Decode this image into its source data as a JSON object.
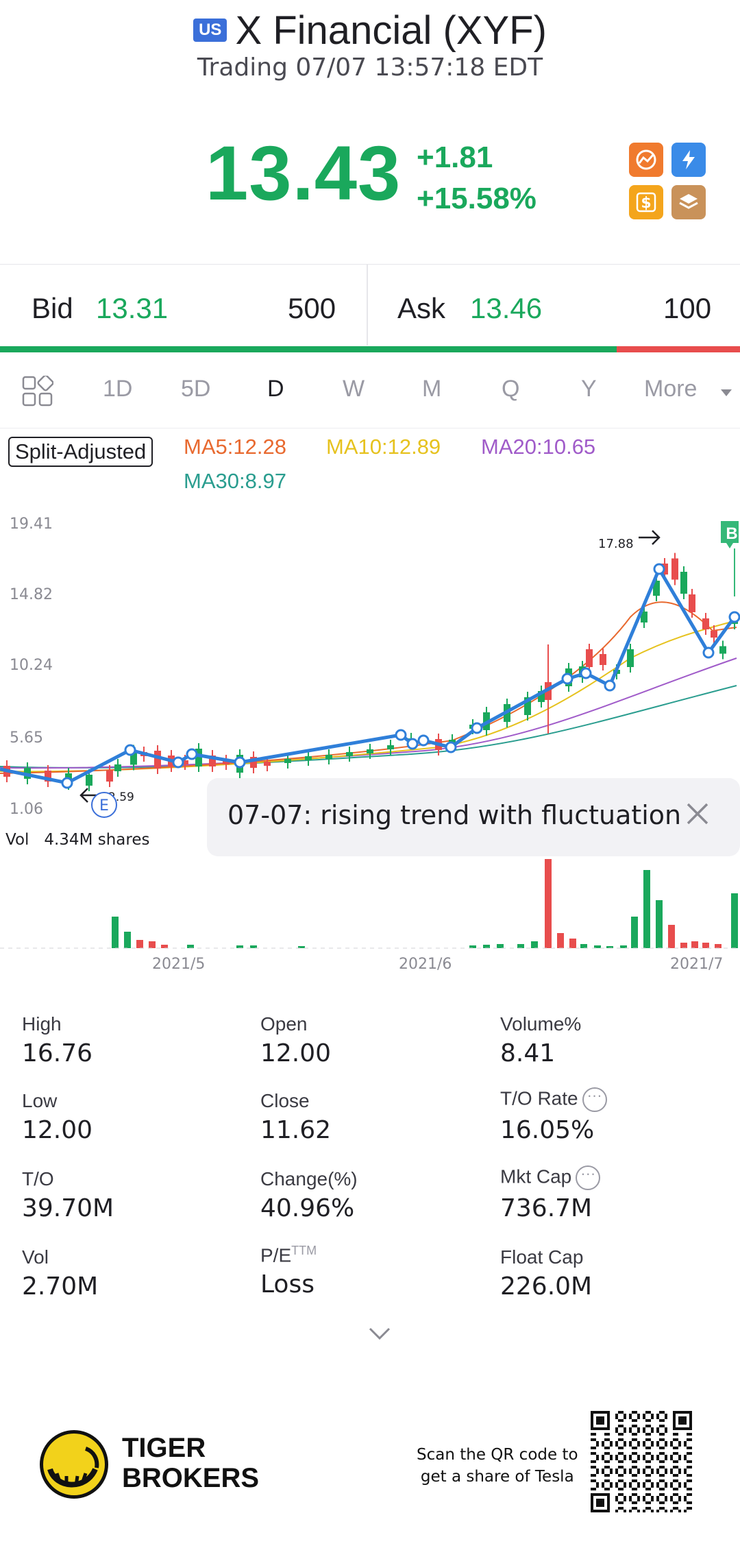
{
  "header": {
    "market_badge": "US",
    "stock_name": "X Financial (XYF)",
    "status": "Trading 07/07 13:57:18 EDT"
  },
  "quote": {
    "price": "13.43",
    "change": "+1.81",
    "change_pct": "+15.58%",
    "up_color": "#1aa85c",
    "down_color": "#e84d4d"
  },
  "bid_ask": {
    "bid_label": "Bid",
    "bid_price": "13.31",
    "bid_qty": "500",
    "ask_label": "Ask",
    "ask_price": "13.46",
    "ask_qty": "100",
    "bid_ratio": 0.833
  },
  "tabs": {
    "items": [
      "1D",
      "5D",
      "D",
      "W",
      "M",
      "Q",
      "Y",
      "More"
    ],
    "active": "D"
  },
  "indicators": {
    "split_label": "Split-Adjusted",
    "ma5": "MA5:12.28",
    "ma10": "MA10:12.89",
    "ma20": "MA20:10.65",
    "ma30": "MA30:8.97",
    "ma5_color": "#e8692f",
    "ma10_color": "#e6c21e",
    "ma20_color": "#a05bc9",
    "ma30_color": "#2a9d8f"
  },
  "chart_data": {
    "type": "candlestick",
    "y_ticks": [
      "19.41",
      "14.82",
      "10.24",
      "5.65",
      "1.06"
    ],
    "x_ticks": [
      "2021/5",
      "2021/6",
      "2021/7"
    ],
    "high_marker": "17.88",
    "low_marker": "2.59",
    "volume_label": "Vol",
    "volume_value": "4.34M shares",
    "trend_note": "07-07: rising trend with fluctuation",
    "event_letter": "E",
    "buy_marker": "B"
  },
  "stats": {
    "high_label": "High",
    "high": "16.76",
    "open_label": "Open",
    "open": "12.00",
    "volpct_label": "Volume%",
    "volpct": "8.41",
    "low_label": "Low",
    "low": "12.00",
    "close_label": "Close",
    "close": "11.62",
    "torate_label": "T/O Rate",
    "torate": "16.05%",
    "to_label": "T/O",
    "to": "39.70M",
    "chg_label": "Change(%)",
    "chg": "40.96%",
    "mktcap_label": "Mkt Cap",
    "mktcap": "736.7M",
    "vol_label": "Vol",
    "vol": "2.70M",
    "pe_label": "P/E",
    "pe_sup": "TTM",
    "pe": "Loss",
    "floatcap_label": "Float Cap",
    "floatcap": "226.0M"
  },
  "footer": {
    "brand_line1": "TIGER",
    "brand_line2": "BROKERS",
    "scan_line1": "Scan the QR code to",
    "scan_line2": "get a share of Tesla"
  }
}
